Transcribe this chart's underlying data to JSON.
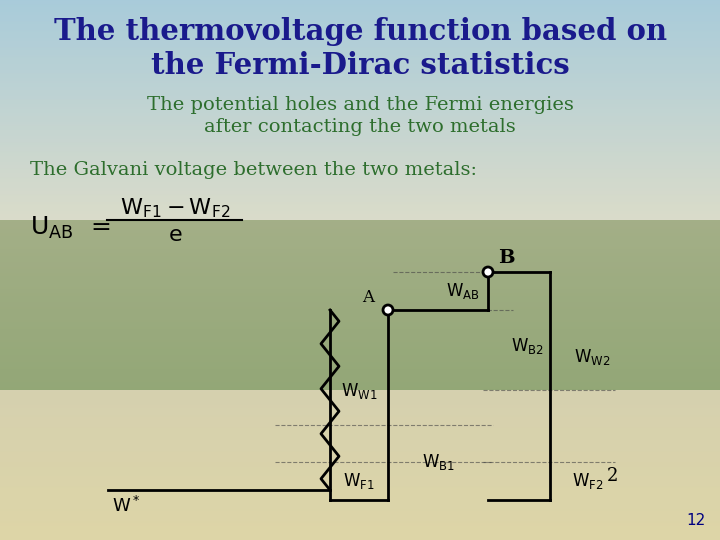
{
  "title_line1": "The thermovoltage function based on",
  "title_line2": "the Fermi-Dirac statistics",
  "subtitle_line1": "The potential holes and the Fermi energies",
  "subtitle_line2": "after contacting the two metals",
  "galvani_text": "The Galvani voltage between the two metals:",
  "title_color": "#1a1a8c",
  "subtitle_color": "#2d6e2d",
  "galvani_color": "#2d6e2d",
  "page_number": "12",
  "page_number_color": "#000080",
  "diagram_color": "#000000",
  "bg_top": "#7ab0c8",
  "bg_mid": "#6a8c4a",
  "bg_bot": "#c8b87a",
  "bg_ground": "#d4c890"
}
